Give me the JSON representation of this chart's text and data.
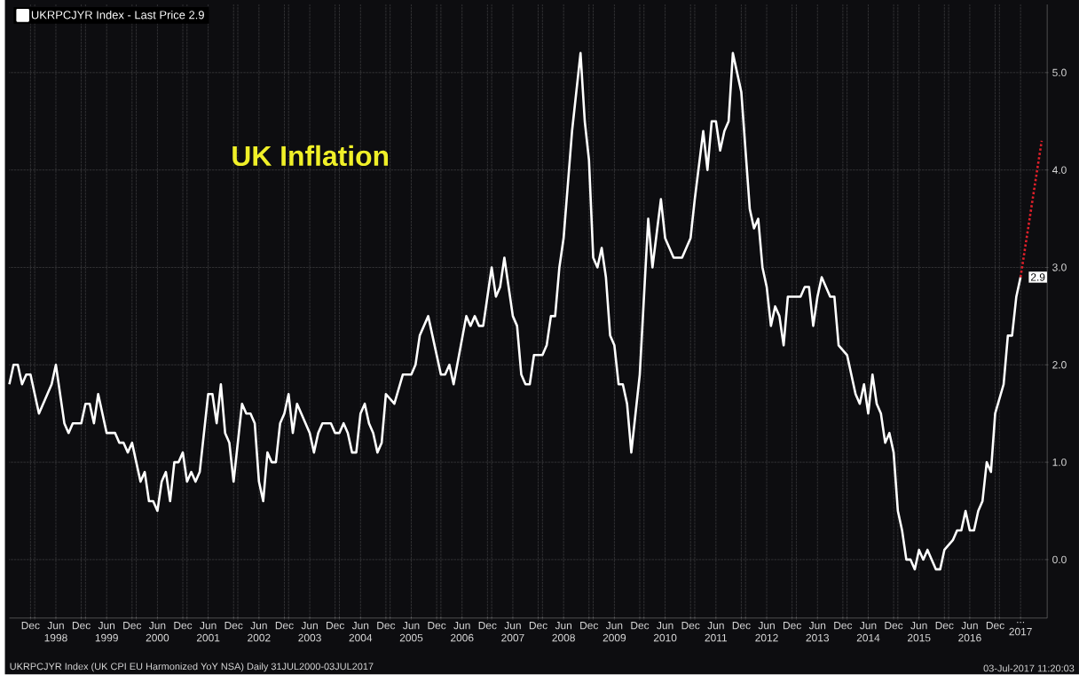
{
  "chart_data": {
    "type": "line",
    "title": "UK Inflation",
    "x": [
      "1997-07",
      "1997-08",
      "1997-09",
      "1997-10",
      "1997-11",
      "1997-12",
      "1998-02",
      "1998-05",
      "1998-06",
      "1998-08",
      "1998-09",
      "1998-10",
      "1998-12",
      "1999-01",
      "1999-02",
      "1999-03",
      "1999-04",
      "1999-06",
      "1999-08",
      "1999-09",
      "1999-10",
      "1999-11",
      "1999-12",
      "2000-01",
      "2000-02",
      "2000-03",
      "2000-04",
      "2000-05",
      "2000-06",
      "2000-07",
      "2000-08",
      "2000-09",
      "2000-10",
      "2000-11",
      "2000-12",
      "2001-01",
      "2001-02",
      "2001-03",
      "2001-04",
      "2001-06",
      "2001-07",
      "2001-08",
      "2001-09",
      "2001-10",
      "2001-11",
      "2001-12",
      "2002-02",
      "2002-03",
      "2002-04",
      "2002-05",
      "2002-06",
      "2002-07",
      "2002-08",
      "2002-09",
      "2002-10",
      "2002-11",
      "2002-12",
      "2003-01",
      "2003-02",
      "2003-03",
      "2003-05",
      "2003-06",
      "2003-07",
      "2003-08",
      "2003-09",
      "2003-11",
      "2003-12",
      "2004-01",
      "2004-02",
      "2004-03",
      "2004-04",
      "2004-05",
      "2004-06",
      "2004-07",
      "2004-08",
      "2004-09",
      "2004-10",
      "2004-11",
      "2004-12",
      "2005-02",
      "2005-04",
      "2005-06",
      "2005-07",
      "2005-08",
      "2005-10",
      "2006-01",
      "2006-02",
      "2006-03",
      "2006-04",
      "2006-07",
      "2006-08",
      "2006-09",
      "2006-10",
      "2006-11",
      "2007-01",
      "2007-02",
      "2007-03",
      "2007-04",
      "2007-06",
      "2007-07",
      "2007-08",
      "2007-09",
      "2007-10",
      "2007-11",
      "2008-01",
      "2008-02",
      "2008-03",
      "2008-04",
      "2008-05",
      "2008-06",
      "2008-08",
      "2008-10",
      "2008-11",
      "2008-12",
      "2009-01",
      "2009-02",
      "2009-03",
      "2009-04",
      "2009-05",
      "2009-06",
      "2009-07",
      "2009-08",
      "2009-09",
      "2009-10",
      "2009-12",
      "2010-02",
      "2010-03",
      "2010-05",
      "2010-06",
      "2010-08",
      "2010-09",
      "2010-10",
      "2010-12",
      "2011-01",
      "2011-03",
      "2011-04",
      "2011-05",
      "2011-06",
      "2011-07",
      "2011-08",
      "2011-09",
      "2011-10",
      "2011-12",
      "2012-02",
      "2012-03",
      "2012-04",
      "2012-05",
      "2012-06",
      "2012-07",
      "2012-08",
      "2012-09",
      "2012-10",
      "2012-11",
      "2013-01",
      "2013-02",
      "2013-03",
      "2013-04",
      "2013-05",
      "2013-06",
      "2013-07",
      "2013-08",
      "2013-09",
      "2013-10",
      "2013-11",
      "2014-01",
      "2014-02",
      "2014-03",
      "2014-04",
      "2014-05",
      "2014-06",
      "2014-07",
      "2014-08",
      "2014-09",
      "2014-10",
      "2014-11",
      "2014-12",
      "2015-01",
      "2015-02",
      "2015-03",
      "2015-04",
      "2015-05",
      "2015-06",
      "2015-07",
      "2015-08",
      "2015-09",
      "2015-10",
      "2015-11",
      "2015-12",
      "2016-02",
      "2016-03",
      "2016-04",
      "2016-05",
      "2016-06",
      "2016-07",
      "2016-08",
      "2016-09",
      "2016-10",
      "2016-11",
      "2016-12",
      "2017-02",
      "2017-03",
      "2017-04",
      "2017-05",
      "2017-06"
    ],
    "series": [
      {
        "name": "UKRPCJYR Index - Last Price 2.9",
        "color": "#ffffff",
        "values": [
          1.8,
          2.0,
          2.0,
          1.8,
          1.9,
          1.9,
          1.5,
          1.8,
          2.0,
          1.4,
          1.3,
          1.4,
          1.4,
          1.6,
          1.6,
          1.4,
          1.7,
          1.3,
          1.3,
          1.2,
          1.2,
          1.1,
          1.2,
          1.0,
          0.8,
          0.9,
          0.6,
          0.6,
          0.5,
          0.8,
          0.9,
          0.6,
          1.0,
          1.0,
          1.1,
          0.8,
          0.9,
          0.8,
          0.9,
          1.7,
          1.7,
          1.4,
          1.8,
          1.3,
          1.2,
          0.8,
          1.6,
          1.5,
          1.5,
          1.4,
          0.8,
          0.6,
          1.1,
          1.0,
          1.0,
          1.4,
          1.5,
          1.7,
          1.3,
          1.6,
          1.4,
          1.3,
          1.1,
          1.3,
          1.4,
          1.4,
          1.3,
          1.3,
          1.4,
          1.3,
          1.1,
          1.1,
          1.5,
          1.6,
          1.4,
          1.3,
          1.1,
          1.2,
          1.7,
          1.6,
          1.9,
          1.9,
          2.0,
          2.3,
          2.5,
          1.9,
          1.9,
          2.0,
          1.8,
          2.5,
          2.4,
          2.5,
          2.4,
          2.4,
          3.0,
          2.7,
          2.8,
          3.1,
          2.5,
          2.4,
          1.9,
          1.8,
          1.8,
          2.1,
          2.1,
          2.2,
          2.5,
          2.5,
          3.0,
          3.3,
          4.4,
          5.2,
          4.5,
          4.1,
          3.1,
          3.0,
          3.2,
          2.9,
          2.3,
          2.2,
          1.8,
          1.8,
          1.6,
          1.1,
          1.9,
          3.5,
          3.0,
          3.7,
          3.3,
          3.1,
          3.1,
          3.1,
          3.3,
          3.7,
          4.4,
          4.0,
          4.5,
          4.5,
          4.2,
          4.4,
          4.5,
          5.2,
          4.8,
          3.6,
          3.4,
          3.5,
          3.0,
          2.8,
          2.4,
          2.6,
          2.5,
          2.2,
          2.7,
          2.7,
          2.7,
          2.8,
          2.8,
          2.4,
          2.7,
          2.9,
          2.8,
          2.7,
          2.7,
          2.2,
          2.1,
          1.9,
          1.7,
          1.6,
          1.8,
          1.5,
          1.9,
          1.6,
          1.5,
          1.2,
          1.3,
          1.1,
          0.5,
          0.3,
          0.0,
          0.0,
          -0.1,
          0.1,
          0.0,
          0.1,
          0.0,
          -0.1,
          -0.1,
          0.1,
          0.2,
          0.3,
          0.3,
          0.5,
          0.3,
          0.3,
          0.5,
          0.6,
          1.0,
          0.9,
          1.5,
          1.8,
          2.3,
          2.3,
          2.7,
          2.9
        ]
      },
      {
        "color": "#e0202a",
        "line_style": "dotted",
        "x": [
          "2017-06",
          "2017-11"
        ],
        "values": [
          2.9,
          4.3
        ]
      }
    ],
    "xlim": [
      "1997-07",
      "2017-12-10"
    ],
    "ylim": [
      -0.6,
      5.7
    ],
    "xticks": [
      {
        "value": "1997-12",
        "label": "Dec"
      },
      {
        "value": "1998-01",
        "label": null
      },
      {
        "value": "1998-06",
        "label": "Jun 1998"
      },
      {
        "value": "1998-12",
        "label": "Dec"
      },
      {
        "value": "1999-01",
        "label": null
      },
      {
        "value": "1999-06",
        "label": "Jun 1999"
      },
      {
        "value": "1999-12",
        "label": "Dec"
      },
      {
        "value": "2000-01",
        "label": null
      },
      {
        "value": "2000-06",
        "label": "Jun 2000"
      },
      {
        "value": "2000-12",
        "label": "Dec"
      },
      {
        "value": "2001-01",
        "label": null
      },
      {
        "value": "2001-06",
        "label": "Jun 2001"
      },
      {
        "value": "2001-12",
        "label": "Dec"
      },
      {
        "value": "2002-01",
        "label": null
      },
      {
        "value": "2002-06",
        "label": "Jun 2002"
      },
      {
        "value": "2002-12",
        "label": "Dec"
      },
      {
        "value": "2003-01",
        "label": null
      },
      {
        "value": "2003-06",
        "label": "Jun 2003"
      },
      {
        "value": "2003-12",
        "label": "Dec"
      },
      {
        "value": "2004-01",
        "label": null
      },
      {
        "value": "2004-06",
        "label": "Jun 2004"
      },
      {
        "value": "2004-12",
        "label": "Dec"
      },
      {
        "value": "2005-01",
        "label": null
      },
      {
        "value": "2005-06",
        "label": "Jun 2005"
      },
      {
        "value": "2005-12",
        "label": "Dec"
      },
      {
        "value": "2006-01",
        "label": null
      },
      {
        "value": "2006-06",
        "label": "Jun 2006"
      },
      {
        "value": "2006-12",
        "label": "Dec"
      },
      {
        "value": "2007-01",
        "label": null
      },
      {
        "value": "2007-06",
        "label": "Jun 2007"
      },
      {
        "value": "2007-12",
        "label": "Dec"
      },
      {
        "value": "2008-01",
        "label": null
      },
      {
        "value": "2008-06",
        "label": "Jun 2008"
      },
      {
        "value": "2008-12",
        "label": "Dec"
      },
      {
        "value": "2009-01",
        "label": null
      },
      {
        "value": "2009-06",
        "label": "Jun 2009"
      },
      {
        "value": "2009-12",
        "label": "Dec"
      },
      {
        "value": "2010-01",
        "label": null
      },
      {
        "value": "2010-06",
        "label": "Jun 2010"
      },
      {
        "value": "2010-12",
        "label": "Dec"
      },
      {
        "value": "2011-01",
        "label": null
      },
      {
        "value": "2011-06",
        "label": "Jun 2011"
      },
      {
        "value": "2011-12",
        "label": "Dec"
      },
      {
        "value": "2012-01",
        "label": null
      },
      {
        "value": "2012-06",
        "label": "Jun 2012"
      },
      {
        "value": "2012-12",
        "label": "Dec"
      },
      {
        "value": "2013-01",
        "label": null
      },
      {
        "value": "2013-06",
        "label": "Jun 2013"
      },
      {
        "value": "2013-12",
        "label": "Dec"
      },
      {
        "value": "2014-01",
        "label": null
      },
      {
        "value": "2014-06",
        "label": "Jun 2014"
      },
      {
        "value": "2014-12",
        "label": "Dec"
      },
      {
        "value": "2015-01",
        "label": null
      },
      {
        "value": "2015-06",
        "label": "Jun 2015"
      },
      {
        "value": "2015-12",
        "label": "Dec"
      },
      {
        "value": "2016-01",
        "label": null
      },
      {
        "value": "2016-06",
        "label": "Jun 2016"
      },
      {
        "value": "2016-12",
        "label": "Dec"
      },
      {
        "value": "2017-01",
        "label": null
      },
      {
        "value": "2017-06",
        "label": "... 2017"
      }
    ],
    "yticks": [
      {
        "value": 0,
        "label": "0.0"
      },
      {
        "value": 1,
        "label": "1.0"
      },
      {
        "value": 2,
        "label": "2.0"
      },
      {
        "value": 3,
        "label": "3.0"
      },
      {
        "value": 4,
        "label": "4.0"
      },
      {
        "value": 5,
        "label": "5.0"
      }
    ],
    "grid": true,
    "legend": "top left",
    "annotations": [
      "UKRPCJYR Index (UK CPI EU Harmonized YoY NSA)  Daily 31JUL2000-03JUL2017",
      "03-Jul-2017 11:20:03",
      {
        "text": "2.9",
        "y": 2.9
      }
    ]
  }
}
